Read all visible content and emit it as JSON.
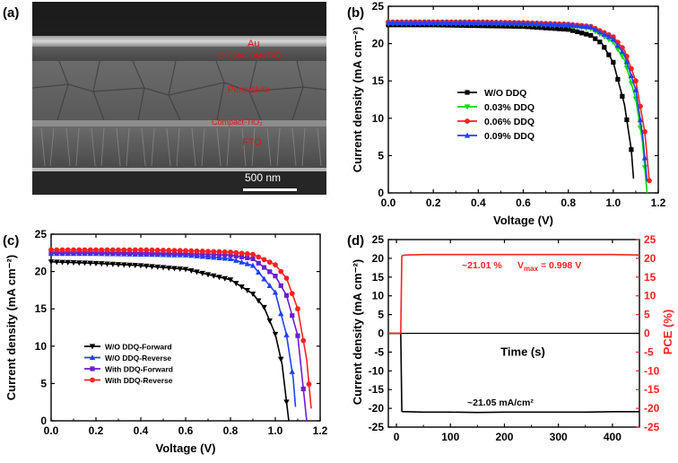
{
  "panels": {
    "a": {
      "letter": "(a)"
    },
    "b": {
      "letter": "(b)"
    },
    "c": {
      "letter": "(c)"
    },
    "d": {
      "letter": "(d)"
    }
  },
  "sem": {
    "layers": [
      "Au",
      "D-Spiro-OMeTAD",
      "Perovskite",
      "Compact-TiO₂",
      "FTO"
    ],
    "scale_bar": "500 nm"
  },
  "chart_data": [
    {
      "panel": "b",
      "type": "line",
      "xlabel": "Voltage (V)",
      "ylabel": "Current density (mA cm⁻²)",
      "xlim": [
        0.0,
        1.2
      ],
      "ylim": [
        0,
        25
      ],
      "xticks": [
        0.0,
        0.2,
        0.4,
        0.6,
        0.8,
        1.0,
        1.2
      ],
      "yticks": [
        0,
        5,
        10,
        15,
        20,
        25
      ],
      "xtick_labels": [
        "0.0",
        "0.2",
        "0.4",
        "0.6",
        "0.8",
        "1.0",
        "1.2"
      ],
      "ytick_labels": [
        "0",
        "5",
        "10",
        "15",
        "20",
        "25"
      ],
      "legend_position": "center-right",
      "series": [
        {
          "name": "W/O DDQ",
          "color": "#000000",
          "marker": "square",
          "jsc": 22.5,
          "voc": 1.095,
          "n": 2.6,
          "x": [
            0.0,
            0.2,
            0.4,
            0.6,
            0.8,
            0.9,
            0.95,
            1.0,
            1.05,
            1.08,
            1.095
          ],
          "y": [
            22.5,
            22.5,
            22.4,
            22.3,
            21.9,
            21.1,
            20.0,
            17.5,
            11.8,
            5.8,
            0.0
          ]
        },
        {
          "name": "0.03% DDQ",
          "color": "#00dd00",
          "marker": "triangle-down",
          "jsc": 22.7,
          "voc": 1.15,
          "n": 2.2,
          "x": [
            0.0,
            0.2,
            0.4,
            0.6,
            0.8,
            0.9,
            1.0,
            1.05,
            1.1,
            1.13,
            1.15
          ],
          "y": [
            22.7,
            22.7,
            22.7,
            22.6,
            22.4,
            22.0,
            20.2,
            17.8,
            12.6,
            6.8,
            0.0
          ]
        },
        {
          "name": "0.06% DDQ",
          "color": "#ff2020",
          "marker": "circle",
          "jsc": 22.9,
          "voc": 1.165,
          "n": 2.0,
          "x": [
            0.0,
            0.2,
            0.4,
            0.6,
            0.8,
            0.9,
            1.0,
            1.05,
            1.1,
            1.14,
            1.165
          ],
          "y": [
            22.9,
            22.9,
            22.9,
            22.8,
            22.6,
            22.3,
            20.9,
            19.1,
            15.0,
            8.2,
            0.0
          ]
        },
        {
          "name": "0.09% DDQ",
          "color": "#2040ff",
          "marker": "triangle-up",
          "jsc": 22.8,
          "voc": 1.155,
          "n": 2.1,
          "x": [
            0.0,
            0.2,
            0.4,
            0.6,
            0.8,
            0.9,
            1.0,
            1.05,
            1.1,
            1.13,
            1.155
          ],
          "y": [
            22.8,
            22.8,
            22.8,
            22.7,
            22.5,
            22.2,
            20.6,
            18.5,
            13.8,
            7.8,
            0.0
          ]
        }
      ]
    },
    {
      "panel": "c",
      "type": "line",
      "xlabel": "Voltage (V)",
      "ylabel": "Current density (mA cm⁻²)",
      "xlim": [
        0.0,
        1.2
      ],
      "ylim": [
        0,
        25
      ],
      "xticks": [
        0.0,
        0.2,
        0.4,
        0.6,
        0.8,
        1.0,
        1.2
      ],
      "yticks": [
        0,
        5,
        10,
        15,
        20,
        25
      ],
      "xtick_labels": [
        "0.0",
        "0.2",
        "0.4",
        "0.6",
        "0.8",
        "1.0",
        "1.2"
      ],
      "ytick_labels": [
        "0",
        "5",
        "10",
        "15",
        "20",
        "25"
      ],
      "legend_position": "lower-center",
      "series": [
        {
          "name": "W/O DDQ-Forward",
          "color": "#000000",
          "marker": "triangle-down",
          "jsc": 21.3,
          "voc": 1.06,
          "n": 3.2,
          "x": [
            0.0,
            0.2,
            0.4,
            0.6,
            0.8,
            0.9,
            0.95,
            1.0,
            1.03,
            1.06
          ],
          "y": [
            21.3,
            21.1,
            20.8,
            20.3,
            18.9,
            17.0,
            15.2,
            11.6,
            7.6,
            0.0
          ]
        },
        {
          "name": "W/O DDQ-Reverse",
          "color": "#2040ff",
          "marker": "triangle-up",
          "jsc": 22.4,
          "voc": 1.095,
          "n": 2.6,
          "x": [
            0.0,
            0.2,
            0.4,
            0.6,
            0.8,
            0.9,
            1.0,
            1.05,
            1.08,
            1.095
          ],
          "y": [
            22.4,
            22.4,
            22.3,
            22.2,
            21.7,
            20.8,
            17.2,
            11.5,
            5.6,
            0.0
          ]
        },
        {
          "name": "With DDQ-Forward",
          "color": "#6a1fd0",
          "marker": "square",
          "jsc": 22.6,
          "voc": 1.14,
          "n": 2.3,
          "x": [
            0.0,
            0.2,
            0.4,
            0.6,
            0.8,
            0.9,
            1.0,
            1.05,
            1.1,
            1.14
          ],
          "y": [
            22.6,
            22.6,
            22.5,
            22.4,
            22.2,
            21.7,
            19.4,
            16.8,
            11.4,
            0.0
          ]
        },
        {
          "name": "With DDQ-Reverse",
          "color": "#ff2020",
          "marker": "circle",
          "jsc": 22.9,
          "voc": 1.165,
          "n": 2.0,
          "x": [
            0.0,
            0.2,
            0.4,
            0.6,
            0.8,
            0.9,
            1.0,
            1.05,
            1.1,
            1.14,
            1.165
          ],
          "y": [
            22.9,
            22.9,
            22.9,
            22.8,
            22.6,
            22.3,
            20.9,
            19.1,
            15.0,
            8.2,
            0.0
          ]
        }
      ]
    },
    {
      "panel": "d",
      "type": "line",
      "xlabel": "Time (s)",
      "ylabel_left": "Current density (mA cm⁻²)",
      "ylabel_right": "PCE (%)",
      "xlim": [
        -15,
        450
      ],
      "ylim": [
        -25,
        25
      ],
      "xticks": [
        0,
        100,
        200,
        300,
        400
      ],
      "yticks": [
        -25,
        -20,
        -15,
        -10,
        -5,
        0,
        5,
        10,
        15,
        20,
        25
      ],
      "xtick_labels": [
        "0",
        "100",
        "200",
        "300",
        "400"
      ],
      "ytick_labels": [
        "-25",
        "-20",
        "-15",
        "-10",
        "-5",
        "0",
        "5",
        "10",
        "15",
        "20",
        "25"
      ],
      "series": [
        {
          "name": "Current density",
          "color": "#000000",
          "x": [
            -15,
            8,
            10,
            12,
            20,
            50,
            100,
            150,
            200,
            250,
            300,
            350,
            400,
            450
          ],
          "y": [
            0,
            0,
            -20.8,
            -20.9,
            -20.9,
            -21.0,
            -21.0,
            -21.1,
            -21.0,
            -21.0,
            -21.0,
            -21.0,
            -20.9,
            -20.9
          ]
        },
        {
          "name": "PCE",
          "color": "#ff2020",
          "x": [
            -15,
            8,
            10,
            12,
            20,
            50,
            100,
            150,
            200,
            250,
            300,
            350,
            400,
            450
          ],
          "y": [
            0,
            0,
            20.6,
            20.8,
            20.9,
            21.0,
            21.0,
            21.0,
            21.0,
            21.0,
            21.0,
            21.0,
            21.0,
            20.9
          ]
        }
      ],
      "annotations": {
        "pce_text": "~21.01 %",
        "vmax_prefix": "V",
        "vmax_sub": "max",
        "vmax_value": "= 0.998 V",
        "current_text": "~21.05 mA/cm²"
      }
    }
  ]
}
